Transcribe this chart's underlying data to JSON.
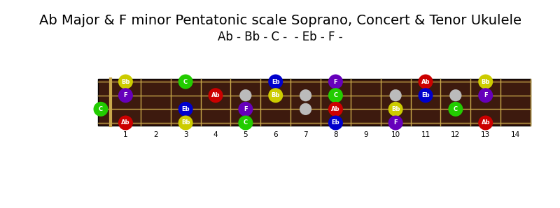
{
  "title": "Ab Major & F minor Pentatonic scale Soprano, Concert & Tenor Ukulele",
  "subtitle": "Ab - Bb - C -  - Eb - F -",
  "fret_max": 14,
  "num_strings": 4,
  "fretboard_color": "#3d1a0e",
  "fret_color": "#c8a84b",
  "string_color": "#c8a84b",
  "background_color": "#ffffff",
  "note_colors": {
    "Ab": "#cc0000",
    "Bb": "#cccc00",
    "C": "#22cc00",
    "Eb": "#0000cc",
    "F": "#6600bb",
    "grey": "#bbbbbb"
  },
  "notes": [
    {
      "string": 0,
      "fret": 1,
      "note": "Bb",
      "color": "Bb"
    },
    {
      "string": 0,
      "fret": 3,
      "note": "C",
      "color": "C"
    },
    {
      "string": 0,
      "fret": 6,
      "note": "Eb",
      "color": "Eb"
    },
    {
      "string": 0,
      "fret": 8,
      "note": "F",
      "color": "F"
    },
    {
      "string": 0,
      "fret": 11,
      "note": "Ab",
      "color": "Ab"
    },
    {
      "string": 0,
      "fret": 13,
      "note": "Bb",
      "color": "Bb"
    },
    {
      "string": 1,
      "fret": 1,
      "note": "F",
      "color": "F"
    },
    {
      "string": 1,
      "fret": 4,
      "note": "Ab",
      "color": "Ab"
    },
    {
      "string": 1,
      "fret": 6,
      "note": "Bb",
      "color": "Bb"
    },
    {
      "string": 1,
      "fret": 8,
      "note": "C",
      "color": "C"
    },
    {
      "string": 1,
      "fret": 11,
      "note": "Eb",
      "color": "Eb"
    },
    {
      "string": 1,
      "fret": 13,
      "note": "F",
      "color": "F"
    },
    {
      "string": 2,
      "fret": 0,
      "note": "C",
      "color": "C"
    },
    {
      "string": 2,
      "fret": 3,
      "note": "Eb",
      "color": "Eb"
    },
    {
      "string": 2,
      "fret": 5,
      "note": "F",
      "color": "F"
    },
    {
      "string": 2,
      "fret": 8,
      "note": "Ab",
      "color": "Ab"
    },
    {
      "string": 2,
      "fret": 10,
      "note": "Bb",
      "color": "Bb"
    },
    {
      "string": 2,
      "fret": 12,
      "note": "C",
      "color": "C"
    },
    {
      "string": 3,
      "fret": 1,
      "note": "Ab",
      "color": "Ab"
    },
    {
      "string": 3,
      "fret": 3,
      "note": "Bb",
      "color": "Bb"
    },
    {
      "string": 3,
      "fret": 5,
      "note": "C",
      "color": "C"
    },
    {
      "string": 3,
      "fret": 8,
      "note": "Eb",
      "color": "Eb"
    },
    {
      "string": 3,
      "fret": 10,
      "note": "F",
      "color": "F"
    },
    {
      "string": 3,
      "fret": 13,
      "note": "Ab",
      "color": "Ab"
    }
  ],
  "grey_dots": [
    {
      "string": 1,
      "fret": 5
    },
    {
      "string": 2,
      "fret": 5
    },
    {
      "string": 1,
      "fret": 7
    },
    {
      "string": 2,
      "fret": 7
    },
    {
      "string": 1,
      "fret": 10
    },
    {
      "string": 2,
      "fret": 10
    },
    {
      "string": 1,
      "fret": 12
    },
    {
      "string": 2,
      "fret": 12
    }
  ],
  "fret_numbers": [
    1,
    2,
    3,
    4,
    5,
    6,
    7,
    8,
    9,
    10,
    11,
    12,
    13,
    14
  ],
  "title_fontsize": 14,
  "subtitle_fontsize": 12
}
